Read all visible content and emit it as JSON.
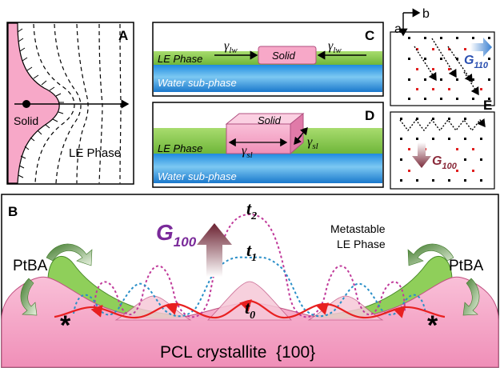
{
  "panel_a": {
    "letter": "A",
    "solid_label": "Solid",
    "le_label": "LE Phase"
  },
  "panel_c": {
    "letter": "C",
    "le_label": "LE Phase",
    "solid_label": "Solid",
    "water_label": "Water sub-phase",
    "gamma_left": "γ",
    "gamma_left_sub": "lw",
    "gamma_right": "γ",
    "gamma_right_sub": "lw"
  },
  "panel_d": {
    "letter": "D",
    "le_label": "LE Phase",
    "solid_label": "Solid",
    "water_label": "Water sub-phase",
    "gamma_front": "γ",
    "gamma_front_sub": "sl",
    "gamma_side": "γ",
    "gamma_side_sub": "sl"
  },
  "panel_e": {
    "letter": "E",
    "axis_a": "a",
    "axis_b": "b",
    "g110_main": "G",
    "g110_sub": "110",
    "g100_main": "G",
    "g100_sub": "100"
  },
  "panel_b": {
    "letter": "B",
    "g100_main": "G",
    "g100_sub": "100",
    "t2_main": "t",
    "t2_sub": "2",
    "t1_main": "t",
    "t1_sub": "1",
    "t0_main": "t",
    "t0_sub": "0",
    "metastable_line1": "Metastable",
    "metastable_line2": "LE Phase",
    "ptba_left": "PtBA",
    "ptba_right": "PtBA",
    "star_left": "*",
    "star_right": "*",
    "crystallite": "PCL crystallite  {100}"
  },
  "colors": {
    "solid_pink": "#f7a8c8",
    "le_green": "#8fcf5a",
    "water_blue": "#3aa0e0",
    "g100_purple": "#7a2a9a",
    "g110_blue": "#2a4fb0",
    "arrow_maroon": "#8a2a3a",
    "red_curve": "#e82020",
    "blue_dotted": "#2a8fc8",
    "magenta_dotted": "#c03a9a"
  }
}
